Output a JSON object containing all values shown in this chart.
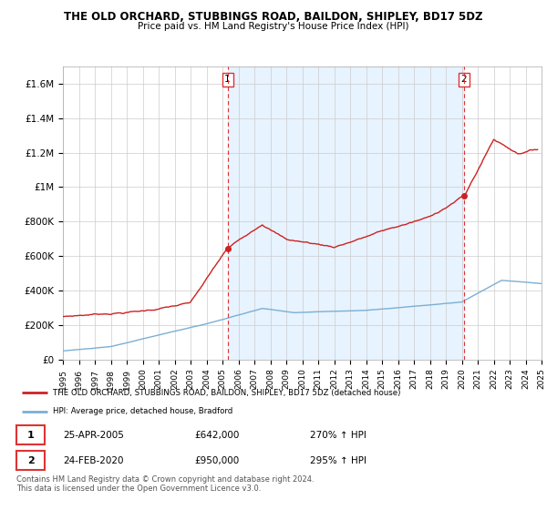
{
  "title": "THE OLD ORCHARD, STUBBINGS ROAD, BAILDON, SHIPLEY, BD17 5DZ",
  "subtitle": "Price paid vs. HM Land Registry's House Price Index (HPI)",
  "legend_line1": "THE OLD ORCHARD, STUBBINGS ROAD, BAILDON, SHIPLEY, BD17 5DZ (detached house)",
  "legend_line2": "HPI: Average price, detached house, Bradford",
  "footnote": "Contains HM Land Registry data © Crown copyright and database right 2024.\nThis data is licensed under the Open Government Licence v3.0.",
  "sale1_date": "25-APR-2005",
  "sale1_price": "£642,000",
  "sale1_hpi": "270% ↑ HPI",
  "sale2_date": "24-FEB-2020",
  "sale2_price": "£950,000",
  "sale2_hpi": "295% ↑ HPI",
  "hpi_color": "#7bafd4",
  "price_color": "#cc2222",
  "dashed_color": "#dd3333",
  "shading_color": "#ddeeff",
  "ylim": [
    0,
    1700000
  ],
  "yticks": [
    0,
    200000,
    400000,
    600000,
    800000,
    1000000,
    1200000,
    1400000,
    1600000
  ],
  "ytick_labels": [
    "£0",
    "£200K",
    "£400K",
    "£600K",
    "£800K",
    "£1M",
    "£1.2M",
    "£1.4M",
    "£1.6M"
  ],
  "year_start": 1995,
  "year_end": 2025,
  "sale1_year": 2005.32,
  "sale2_year": 2020.12,
  "sale1_value": 642000,
  "sale2_value": 950000,
  "grid_color": "#cccccc",
  "plot_bg": "#f0f4f8"
}
